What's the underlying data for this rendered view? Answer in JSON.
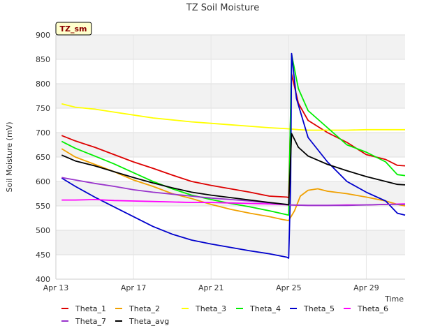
{
  "chart_data": {
    "type": "line",
    "title": "TZ Soil Moisture",
    "badge": "TZ_sm",
    "xlabel": "Time",
    "ylabel": "Soil Moisture (mV)",
    "ylim": [
      400,
      900
    ],
    "xlim": [
      0,
      18
    ],
    "yticks": [
      400,
      450,
      500,
      550,
      600,
      650,
      700,
      750,
      800,
      850,
      900
    ],
    "xticks": [
      {
        "x": 0,
        "label": "Apr 13"
      },
      {
        "x": 4,
        "label": "Apr 17"
      },
      {
        "x": 8,
        "label": "Apr 21"
      },
      {
        "x": 12,
        "label": "Apr 25"
      },
      {
        "x": 16,
        "label": "Apr 29"
      }
    ],
    "grid": true,
    "legend_position": "bottom",
    "series": [
      {
        "name": "Theta_1",
        "color": "#dd0000",
        "points": [
          [
            0.3,
            694
          ],
          [
            1,
            683
          ],
          [
            2,
            670
          ],
          [
            3,
            655
          ],
          [
            4,
            640
          ],
          [
            5,
            627
          ],
          [
            6,
            613
          ],
          [
            7,
            600
          ],
          [
            8,
            592
          ],
          [
            9,
            585
          ],
          [
            10,
            578
          ],
          [
            11,
            570
          ],
          [
            11.9,
            568
          ],
          [
            12.0,
            567
          ],
          [
            12.15,
            820
          ],
          [
            12.5,
            760
          ],
          [
            13,
            725
          ],
          [
            14,
            700
          ],
          [
            15,
            680
          ],
          [
            16,
            655
          ],
          [
            17,
            645
          ],
          [
            17.6,
            633
          ],
          [
            18,
            632
          ]
        ]
      },
      {
        "name": "Theta_2",
        "color": "#f0a000",
        "points": [
          [
            0.3,
            667
          ],
          [
            1,
            650
          ],
          [
            2,
            635
          ],
          [
            3,
            620
          ],
          [
            4,
            603
          ],
          [
            5,
            590
          ],
          [
            6,
            575
          ],
          [
            7,
            565
          ],
          [
            8,
            553
          ],
          [
            9,
            543
          ],
          [
            10,
            535
          ],
          [
            11,
            528
          ],
          [
            11.7,
            522
          ],
          [
            12.0,
            520
          ],
          [
            12.3,
            540
          ],
          [
            12.6,
            570
          ],
          [
            13,
            582
          ],
          [
            13.5,
            585
          ],
          [
            14,
            580
          ],
          [
            15,
            575
          ],
          [
            16,
            568
          ],
          [
            17,
            560
          ],
          [
            17.6,
            553
          ],
          [
            18,
            550
          ]
        ]
      },
      {
        "name": "Theta_3",
        "color": "#ffff00",
        "points": [
          [
            0.3,
            759
          ],
          [
            1,
            752
          ],
          [
            2,
            748
          ],
          [
            3,
            742
          ],
          [
            4,
            736
          ],
          [
            5,
            730
          ],
          [
            6,
            726
          ],
          [
            7,
            722
          ],
          [
            8,
            719
          ],
          [
            9,
            716
          ],
          [
            10,
            713
          ],
          [
            11,
            710
          ],
          [
            11.9,
            708
          ],
          [
            12.5,
            706
          ],
          [
            13,
            705
          ],
          [
            14,
            705
          ],
          [
            15,
            705
          ],
          [
            16,
            706
          ],
          [
            17,
            706
          ],
          [
            18,
            706
          ]
        ]
      },
      {
        "name": "Theta_4",
        "color": "#00ee00",
        "points": [
          [
            0.3,
            682
          ],
          [
            1,
            668
          ],
          [
            2,
            652
          ],
          [
            3,
            636
          ],
          [
            4,
            618
          ],
          [
            5,
            600
          ],
          [
            6,
            585
          ],
          [
            7,
            572
          ],
          [
            8,
            563
          ],
          [
            9,
            555
          ],
          [
            10,
            548
          ],
          [
            11,
            540
          ],
          [
            11.9,
            532
          ],
          [
            12.0,
            531
          ],
          [
            12.15,
            860
          ],
          [
            12.5,
            790
          ],
          [
            13,
            745
          ],
          [
            14,
            710
          ],
          [
            15,
            675
          ],
          [
            16,
            660
          ],
          [
            17,
            640
          ],
          [
            17.6,
            614
          ],
          [
            18,
            612
          ]
        ]
      },
      {
        "name": "Theta_5",
        "color": "#0000cc",
        "points": [
          [
            0.3,
            607
          ],
          [
            1,
            590
          ],
          [
            2,
            568
          ],
          [
            3,
            548
          ],
          [
            4,
            528
          ],
          [
            5,
            508
          ],
          [
            6,
            492
          ],
          [
            7,
            480
          ],
          [
            8,
            472
          ],
          [
            9,
            465
          ],
          [
            10,
            458
          ],
          [
            11,
            452
          ],
          [
            11.9,
            445
          ],
          [
            12.0,
            443
          ],
          [
            12.1,
            590
          ],
          [
            12.15,
            862
          ],
          [
            12.4,
            770
          ],
          [
            13,
            690
          ],
          [
            14,
            640
          ],
          [
            15,
            600
          ],
          [
            16,
            578
          ],
          [
            17,
            560
          ],
          [
            17.6,
            535
          ],
          [
            18,
            531
          ]
        ]
      },
      {
        "name": "Theta_6",
        "color": "#ff00ff",
        "points": [
          [
            0.3,
            562
          ],
          [
            1,
            562
          ],
          [
            2,
            563
          ],
          [
            3,
            561
          ],
          [
            4,
            560
          ],
          [
            5,
            559
          ],
          [
            6,
            558
          ],
          [
            7,
            557
          ],
          [
            8,
            557
          ],
          [
            9,
            556
          ],
          [
            10,
            555
          ],
          [
            11,
            554
          ],
          [
            12,
            552
          ],
          [
            13,
            551
          ],
          [
            14,
            551
          ],
          [
            15,
            552
          ],
          [
            16,
            552
          ],
          [
            17,
            553
          ],
          [
            18,
            554
          ]
        ]
      },
      {
        "name": "Theta_7",
        "color": "#9933cc",
        "points": [
          [
            0.3,
            608
          ],
          [
            1,
            603
          ],
          [
            2,
            596
          ],
          [
            3,
            590
          ],
          [
            4,
            583
          ],
          [
            5,
            578
          ],
          [
            6,
            574
          ],
          [
            7,
            570
          ],
          [
            8,
            566
          ],
          [
            9,
            563
          ],
          [
            10,
            560
          ],
          [
            11,
            556
          ],
          [
            12,
            552
          ],
          [
            13,
            551
          ],
          [
            14,
            551
          ],
          [
            15,
            551
          ],
          [
            16,
            552
          ],
          [
            17,
            553
          ],
          [
            18,
            553
          ]
        ]
      },
      {
        "name": "Theta_avg",
        "color": "#000000",
        "points": [
          [
            0.3,
            654
          ],
          [
            1,
            642
          ],
          [
            2,
            632
          ],
          [
            3,
            620
          ],
          [
            4,
            608
          ],
          [
            5,
            597
          ],
          [
            6,
            587
          ],
          [
            7,
            578
          ],
          [
            8,
            572
          ],
          [
            9,
            567
          ],
          [
            10,
            562
          ],
          [
            11,
            557
          ],
          [
            11.9,
            553
          ],
          [
            12.0,
            552
          ],
          [
            12.15,
            698
          ],
          [
            12.5,
            670
          ],
          [
            13,
            652
          ],
          [
            14,
            635
          ],
          [
            15,
            622
          ],
          [
            16,
            610
          ],
          [
            17,
            600
          ],
          [
            17.6,
            594
          ],
          [
            18,
            593
          ]
        ]
      }
    ]
  }
}
